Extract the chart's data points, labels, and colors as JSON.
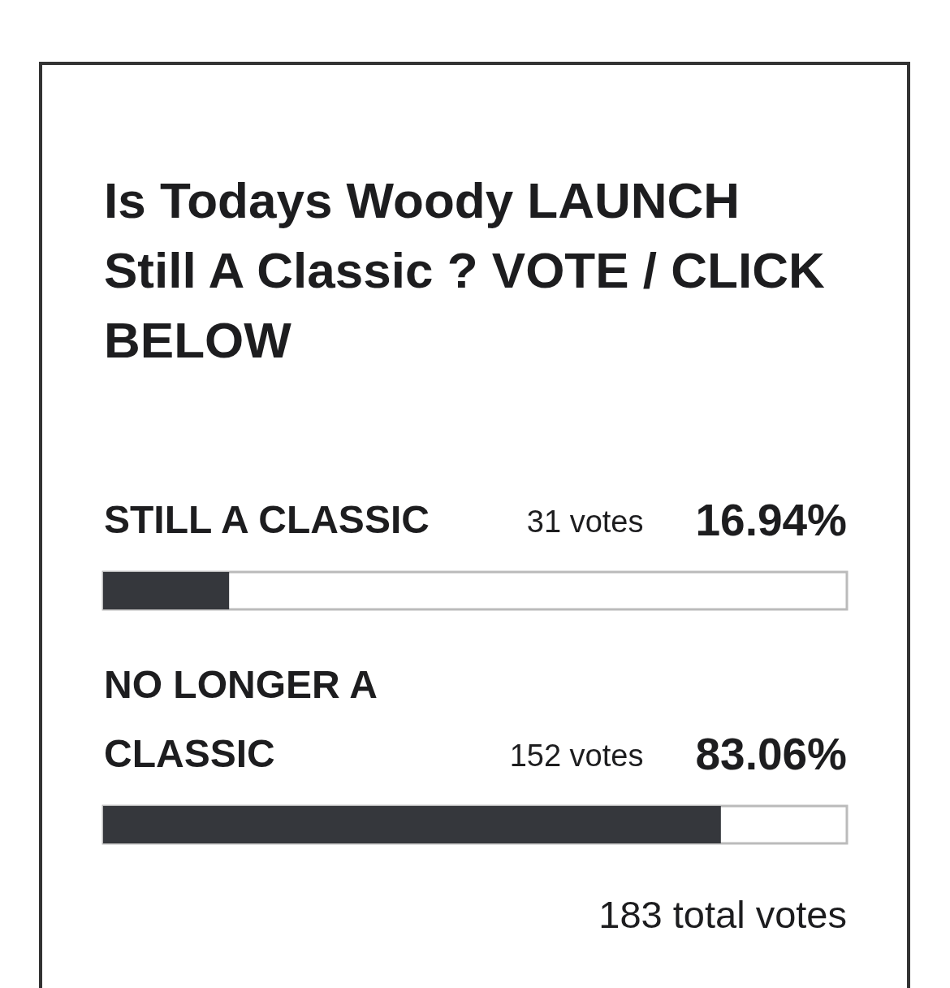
{
  "chart_data": {
    "type": "bar",
    "orientation": "horizontal",
    "title": "Is Todays Woody LAUNCH Still A Classic ? VOTE / CLICK BELOW",
    "categories": [
      "STILL A CLASSIC",
      "NO LONGER A CLASSIC"
    ],
    "values": [
      16.94,
      83.06
    ],
    "color": "#35373c",
    "value_labels": [
      "16.94%",
      "83.06%"
    ],
    "xlim": [
      0,
      100
    ],
    "tick_labels": "y",
    "grid": false,
    "annotations": [
      "31 votes",
      "152 votes",
      "183 total votes"
    ]
  }
}
